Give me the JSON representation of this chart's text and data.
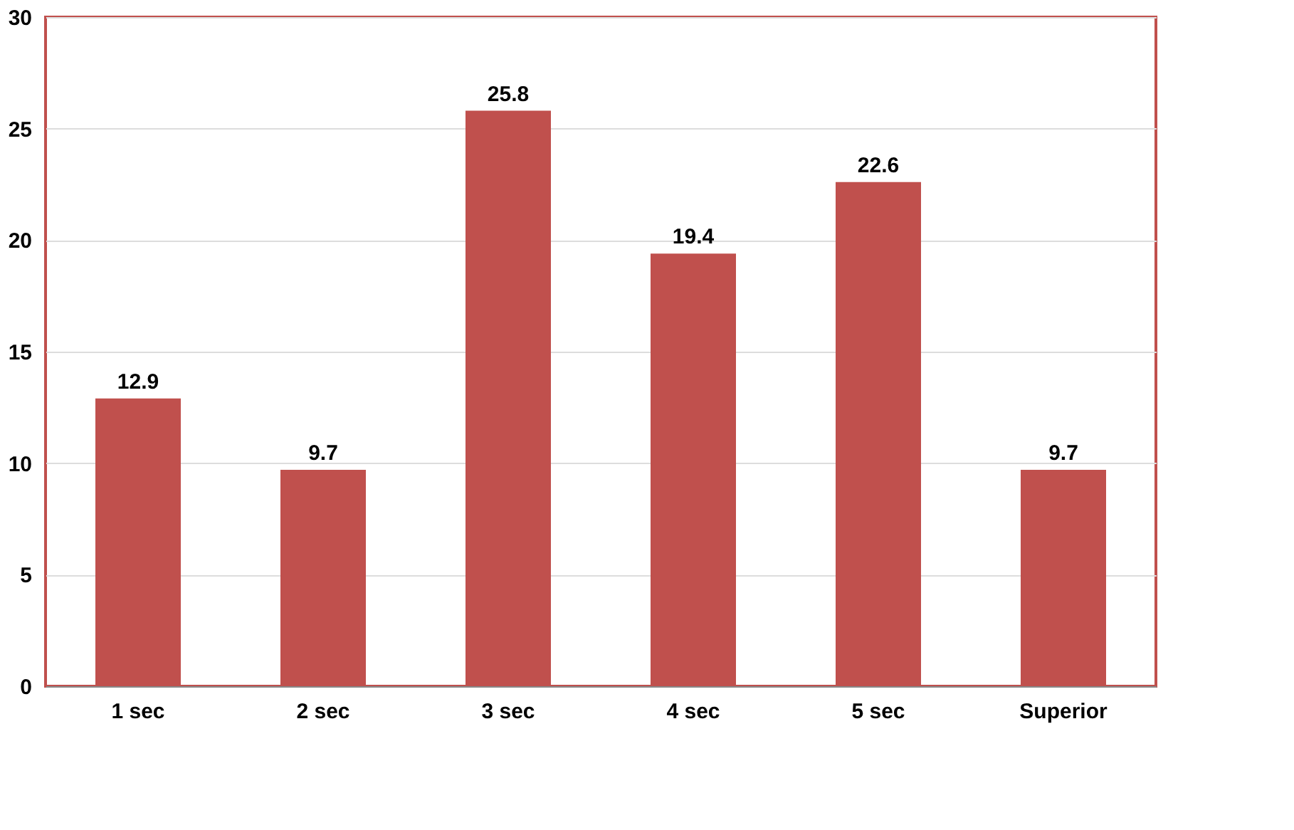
{
  "chart_data": {
    "type": "bar",
    "categories": [
      "1 sec",
      "2 sec",
      "3 sec",
      "4 sec",
      "5 sec",
      "Superior"
    ],
    "values": [
      12.9,
      9.7,
      25.8,
      19.4,
      22.6,
      9.7
    ],
    "color": "#c0504d",
    "ylim": [
      0,
      30
    ],
    "yticks": [
      0,
      5,
      10,
      15,
      20,
      25,
      30
    ],
    "grid": "y",
    "data_labels": true
  }
}
